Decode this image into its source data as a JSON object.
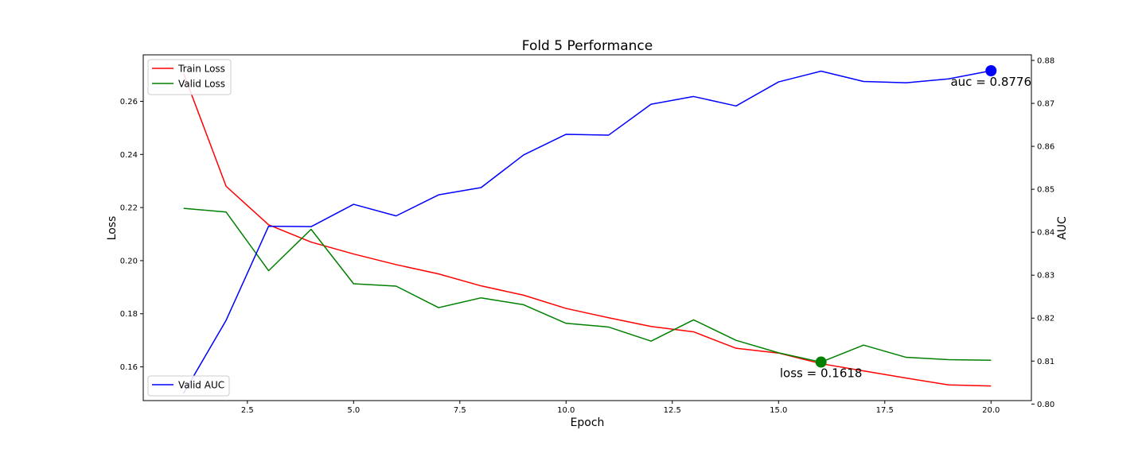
{
  "chart_data": {
    "type": "line",
    "title": "Fold 5 Performance",
    "xlabel": "Epoch",
    "ylabel_left": "Loss",
    "ylabel_right": "AUC",
    "xlim": [
      0.05,
      20.95
    ],
    "ylim_left": [
      0.1473,
      0.2775
    ],
    "ylim_right": [
      0.8008,
      0.8813
    ],
    "x": [
      1,
      2,
      3,
      4,
      5,
      6,
      7,
      8,
      9,
      10,
      11,
      12,
      13,
      14,
      15,
      16,
      17,
      18,
      19,
      20
    ],
    "x_ticks": [
      2.5,
      5.0,
      7.5,
      10.0,
      12.5,
      15.0,
      17.5,
      20.0
    ],
    "x_tick_labels": [
      "2.5",
      "5.0",
      "7.5",
      "10.0",
      "12.5",
      "15.0",
      "17.5",
      "20.0"
    ],
    "y_left_ticks": [
      0.16,
      0.18,
      0.2,
      0.22,
      0.24,
      0.26
    ],
    "y_left_tick_labels": [
      "0.16",
      "0.18",
      "0.20",
      "0.22",
      "0.24",
      "0.26"
    ],
    "y_right_ticks": [
      0.8,
      0.81,
      0.82,
      0.83,
      0.84,
      0.85,
      0.86,
      0.87,
      0.88
    ],
    "y_right_tick_labels": [
      "0.80",
      "0.81",
      "0.82",
      "0.83",
      "0.84",
      "0.85",
      "0.86",
      "0.87",
      "0.88"
    ],
    "series": [
      {
        "name": "Train Loss",
        "axis": "left",
        "color": "#ff0000",
        "values": [
          0.2705,
          0.228,
          0.2135,
          0.207,
          0.2025,
          0.1985,
          0.195,
          0.1905,
          0.187,
          0.182,
          0.1785,
          0.1752,
          0.1732,
          0.167,
          0.1652,
          0.1612,
          0.1585,
          0.1558,
          0.1532,
          0.1528
        ]
      },
      {
        "name": "Valid Loss",
        "axis": "left",
        "color": "#008000",
        "values": [
          0.2197,
          0.2183,
          0.1962,
          0.2118,
          0.1913,
          0.1904,
          0.1823,
          0.186,
          0.1834,
          0.1764,
          0.175,
          0.1697,
          0.1777,
          0.17,
          0.1653,
          0.1618,
          0.1682,
          0.1636,
          0.1627,
          0.1625
        ]
      },
      {
        "name": "Valid AUC",
        "axis": "right",
        "color": "#0000ff",
        "values": [
          0.8025,
          0.8195,
          0.8414,
          0.8413,
          0.8465,
          0.8438,
          0.8487,
          0.8504,
          0.858,
          0.8628,
          0.8626,
          0.8698,
          0.8716,
          0.8694,
          0.875,
          0.8775,
          0.8751,
          0.8748,
          0.8757,
          0.8776
        ]
      }
    ],
    "markers": [
      {
        "series": "Valid AUC",
        "x": 20,
        "y": 0.8776,
        "color": "#0000ff",
        "label": "auc = 0.8776"
      },
      {
        "series": "Valid Loss",
        "x": 16,
        "y": 0.1618,
        "color": "#008000",
        "label": "loss = 0.1618"
      }
    ],
    "legends": [
      {
        "position": "top-left",
        "entries": [
          "Train Loss",
          "Valid Loss"
        ]
      },
      {
        "position": "bottom-left",
        "entries": [
          "Valid AUC"
        ]
      }
    ],
    "grid": false
  }
}
